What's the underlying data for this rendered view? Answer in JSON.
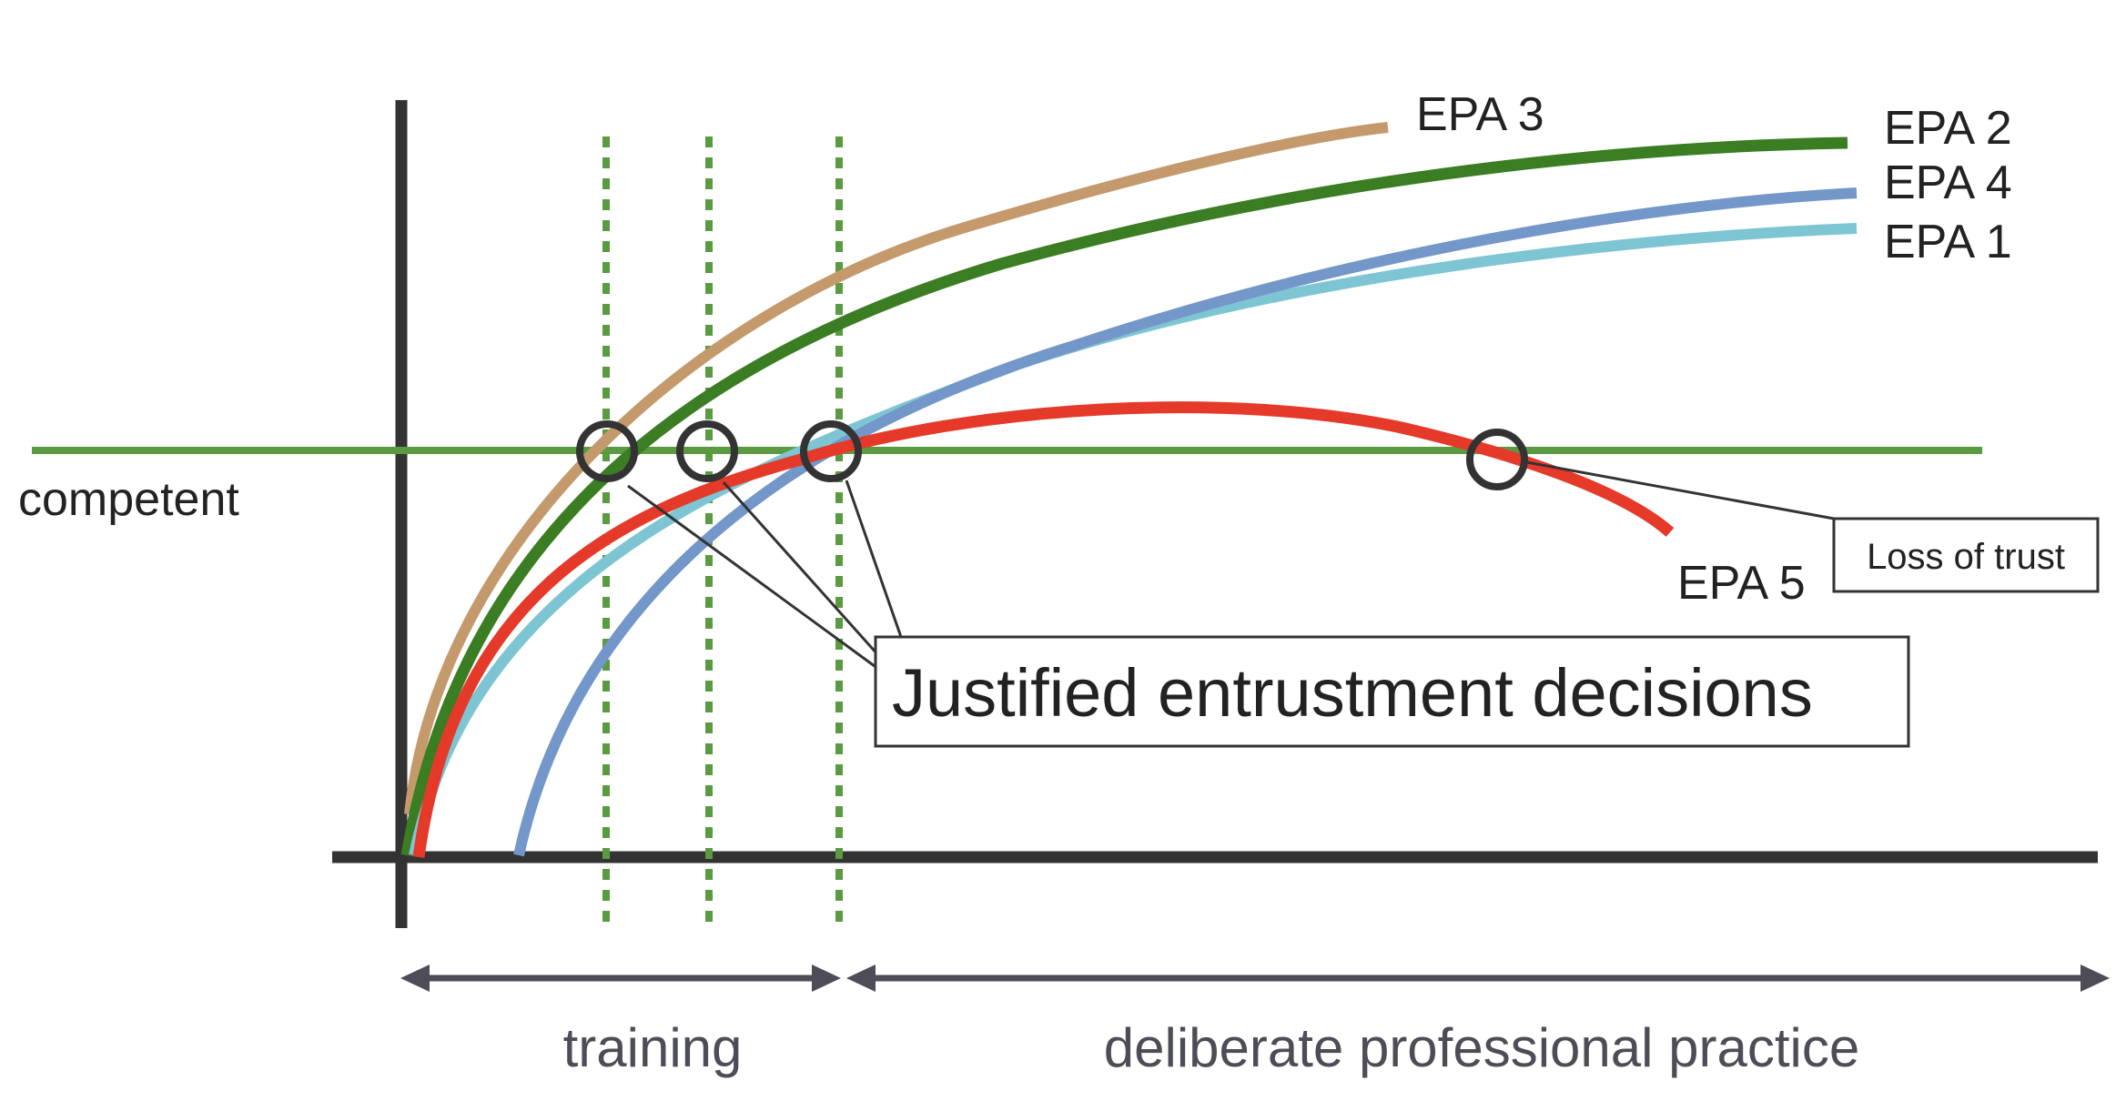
{
  "labels": {
    "competent": "competent",
    "justified": "Justified entrustment decisions",
    "loss": "Loss of trust",
    "training": "training",
    "practice": "deliberate professional practice"
  },
  "curves": [
    {
      "id": "epa3",
      "label": "EPA 3",
      "color": "#c49a6c"
    },
    {
      "id": "epa2",
      "label": "EPA 2",
      "color": "#3a7d22"
    },
    {
      "id": "epa4",
      "label": "EPA 4",
      "color": "#7397c9"
    },
    {
      "id": "epa1",
      "label": "EPA 1",
      "color": "#7ec5d3"
    },
    {
      "id": "epa5",
      "label": "EPA 5",
      "color": "#e53a2a"
    }
  ],
  "colors": {
    "axis": "#333333",
    "threshold": "#5a9a40",
    "dotted": "#5a9a40",
    "circle": "#333333",
    "arrow": "#4d4d58",
    "box": "#333333"
  }
}
